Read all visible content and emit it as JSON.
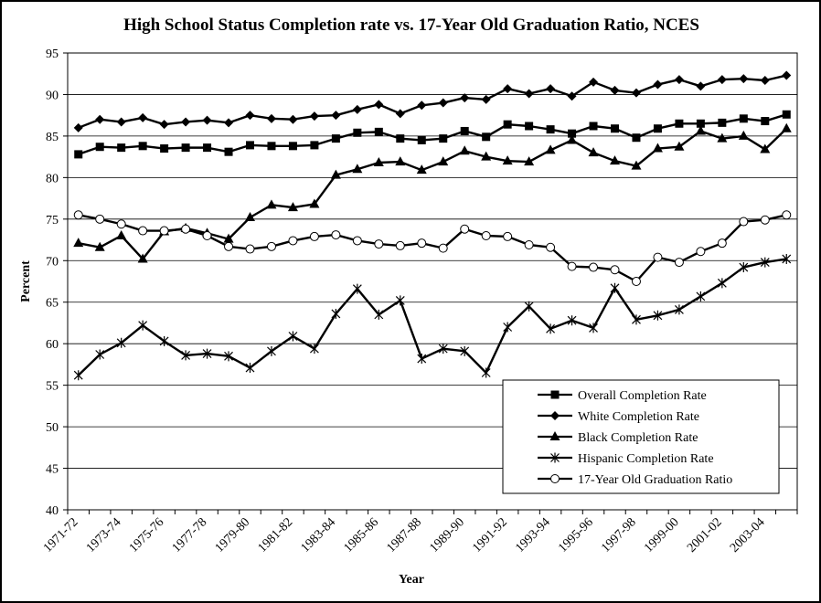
{
  "chart_data": {
    "type": "line",
    "title": "High School Status Completion rate vs. 17-Year Old Graduation Ratio, NCES",
    "xlabel": "Year",
    "ylabel": "Percent",
    "ylim": [
      40,
      95
    ],
    "yticks": [
      40,
      45,
      50,
      55,
      60,
      65,
      70,
      75,
      80,
      85,
      90,
      95
    ],
    "grid": "horizontal",
    "legend_position": "bottom-right",
    "x": [
      "1971-72",
      "1972-73",
      "1973-74",
      "1974-75",
      "1975-76",
      "1976-77",
      "1977-78",
      "1978-79",
      "1979-80",
      "1980-81",
      "1981-82",
      "1982-83",
      "1983-84",
      "1984-85",
      "1985-86",
      "1986-87",
      "1987-88",
      "1988-89",
      "1989-90",
      "1990-91",
      "1991-92",
      "1992-93",
      "1993-94",
      "1994-95",
      "1995-96",
      "1996-97",
      "1997-98",
      "1998-99",
      "1999-00",
      "2000-01",
      "2001-02",
      "2002-03",
      "2003-04",
      "2004-05"
    ],
    "x_tick_labels": [
      "1971-72",
      "1973-74",
      "1975-76",
      "1977-78",
      "1979-80",
      "1981-82",
      "1983-84",
      "1985-86",
      "1987-88",
      "1989-90",
      "1991-92",
      "1993-94",
      "1995-96",
      "1997-98",
      "1999-00",
      "2001-02",
      "2003-04"
    ],
    "series": [
      {
        "name": "Overall Completion Rate",
        "marker": "square",
        "values": [
          82.8,
          83.7,
          83.6,
          83.8,
          83.5,
          83.6,
          83.6,
          83.1,
          83.9,
          83.8,
          83.8,
          83.9,
          84.7,
          85.4,
          85.5,
          84.7,
          84.5,
          84.7,
          85.6,
          84.9,
          86.4,
          86.2,
          85.8,
          85.3,
          86.2,
          85.9,
          84.8,
          85.9,
          86.5,
          86.5,
          86.6,
          87.1,
          86.8,
          87.6
        ]
      },
      {
        "name": "White Completion Rate",
        "marker": "diamond",
        "values": [
          86.0,
          87.0,
          86.7,
          87.2,
          86.4,
          86.7,
          86.9,
          86.6,
          87.5,
          87.1,
          87.0,
          87.4,
          87.5,
          88.2,
          88.8,
          87.7,
          88.7,
          89.0,
          89.6,
          89.4,
          90.7,
          90.1,
          90.7,
          89.8,
          91.5,
          90.5,
          90.2,
          91.2,
          91.8,
          91.0,
          91.8,
          91.9,
          91.7,
          92.3
        ]
      },
      {
        "name": "Black Completion Rate",
        "marker": "triangle",
        "values": [
          72.1,
          71.6,
          73.0,
          70.2,
          73.5,
          73.9,
          73.3,
          72.6,
          75.2,
          76.7,
          76.4,
          76.8,
          80.3,
          81.0,
          81.8,
          81.9,
          80.9,
          81.9,
          83.2,
          82.5,
          82.0,
          81.9,
          83.3,
          84.5,
          83.0,
          82.0,
          81.4,
          83.5,
          83.7,
          85.6,
          84.7,
          85.0,
          83.4,
          85.9
        ]
      },
      {
        "name": "Hispanic Completion Rate",
        "marker": "asterisk",
        "values": [
          56.2,
          58.7,
          60.1,
          62.2,
          60.3,
          58.6,
          58.8,
          58.5,
          57.1,
          59.1,
          60.9,
          59.4,
          63.6,
          66.6,
          63.5,
          65.2,
          58.2,
          59.4,
          59.1,
          56.5,
          62.0,
          64.5,
          61.8,
          62.8,
          61.9,
          66.7,
          62.9,
          63.4,
          64.1,
          65.7,
          67.3,
          69.2,
          69.8,
          70.2
        ]
      },
      {
        "name": "17-Year Old Graduation Ratio",
        "marker": "circle",
        "values": [
          75.5,
          75.0,
          74.4,
          73.6,
          73.6,
          73.8,
          73.0,
          71.7,
          71.4,
          71.7,
          72.4,
          72.9,
          73.1,
          72.4,
          72.0,
          71.8,
          72.1,
          71.5,
          73.8,
          73.0,
          72.9,
          71.9,
          71.6,
          69.3,
          69.2,
          68.9,
          67.5,
          70.4,
          69.8,
          71.1,
          72.1,
          74.7,
          74.9,
          75.5
        ]
      }
    ]
  }
}
